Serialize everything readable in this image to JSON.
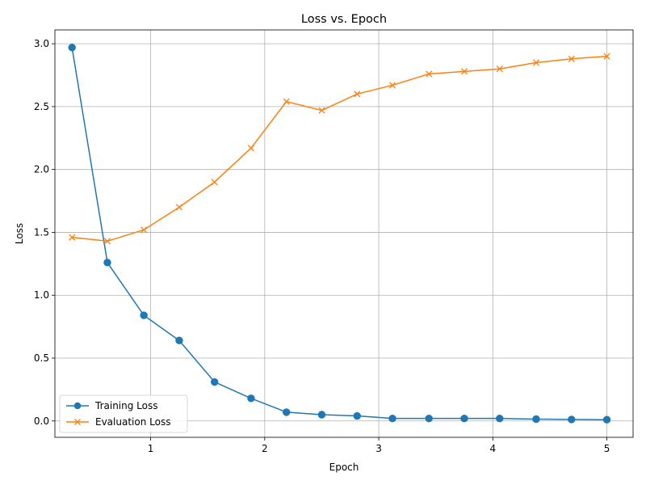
{
  "chart_data": {
    "type": "line",
    "title": "Loss vs. Epoch",
    "xlabel": "Epoch",
    "ylabel": "Loss",
    "xlim": [
      0.16,
      5.23
    ],
    "ylim": [
      -0.13,
      3.11
    ],
    "xticks": [
      1,
      2,
      3,
      4,
      5
    ],
    "xtick_labels": [
      "1",
      "2",
      "3",
      "4",
      "5"
    ],
    "yticks": [
      0,
      0.5,
      1,
      1.5,
      2,
      2.5,
      3
    ],
    "ytick_labels": [
      "0.0",
      "0.5",
      "1.0",
      "1.5",
      "2.0",
      "2.5",
      "3.0"
    ],
    "grid": true,
    "legend_position": "lower-left",
    "x": [
      0.31,
      0.62,
      0.94,
      1.25,
      1.56,
      1.88,
      2.19,
      2.5,
      2.81,
      3.12,
      3.44,
      3.75,
      4.06,
      4.38,
      4.69,
      5.0
    ],
    "series": [
      {
        "name": "Training Loss",
        "color": "#1f77b4",
        "marker": "circle",
        "values": [
          2.97,
          1.26,
          0.84,
          0.64,
          0.31,
          0.18,
          0.07,
          0.05,
          0.04,
          0.02,
          0.02,
          0.02,
          0.02,
          0.015,
          0.012,
          0.01
        ]
      },
      {
        "name": "Evaluation Loss",
        "color": "#ff7f0e",
        "marker": "x",
        "values": [
          1.46,
          1.43,
          1.52,
          1.7,
          1.9,
          2.17,
          2.54,
          2.47,
          2.6,
          2.67,
          2.76,
          2.78,
          2.8,
          2.85,
          2.88,
          2.9
        ]
      }
    ]
  }
}
